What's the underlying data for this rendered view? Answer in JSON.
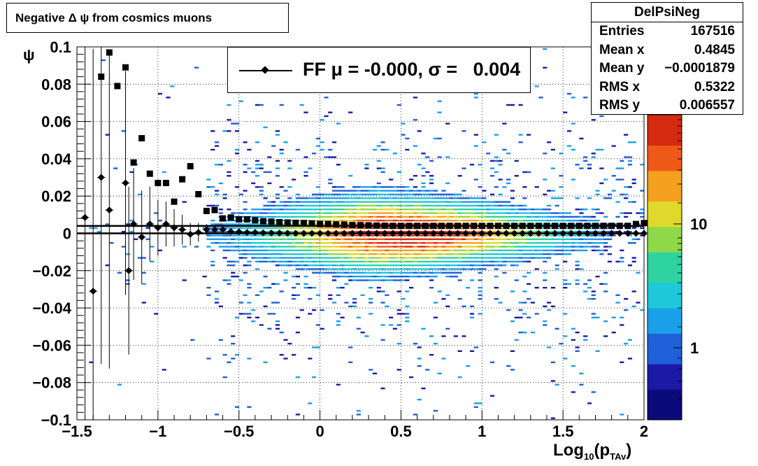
{
  "title": "Negative Δ ψ from cosmics muons",
  "stats": {
    "name": "DelPsiNeg",
    "rows": [
      {
        "label": "Entries",
        "value": "167516"
      },
      {
        "label": "Mean x",
        "value": "0.4845"
      },
      {
        "label": "Mean y",
        "value": "−0.0001879"
      },
      {
        "label": "RMS x",
        "value": "0.5322"
      },
      {
        "label": "RMS y",
        "value": "0.006557"
      }
    ]
  },
  "legend": {
    "label": "FF μ = -0.000, σ =   0.004"
  },
  "axes": {
    "xlabel_main": "Log",
    "xlabel_sub": "10",
    "xlabel_paren": "(p",
    "xlabel_sub2": "TAv",
    "xlabel_close": ")",
    "ylabel": "ψ"
  },
  "chart_data": {
    "type": "heatmap",
    "xlim": [
      -1.5,
      2
    ],
    "ylim": [
      -0.1,
      0.1
    ],
    "grid": true,
    "log_z": true,
    "z_ticks": [
      "1",
      "10"
    ],
    "x_ticks": [
      "−1.5",
      "−1",
      "−0.5",
      "0",
      "0.5",
      "1",
      "1.5",
      "2"
    ],
    "y_ticks": [
      "−0.1",
      "−0.08",
      "−0.06",
      "−0.04",
      "−0.02",
      "0",
      "0.02",
      "0.04",
      "0.06",
      "0.08",
      "0.1"
    ],
    "colors": [
      "#1a1aa6",
      "#1f5fd8",
      "#1aa0e8",
      "#1ec8d8",
      "#2fd3a0",
      "#8fd84a",
      "#e0d82a",
      "#f5a11f",
      "#ee5a17",
      "#d42a10"
    ],
    "series": [
      {
        "name": "FF",
        "marker": "diamond",
        "x": [
          -1.45,
          -1.4,
          -1.35,
          -1.3,
          -1.2,
          -1.18,
          -1.15,
          -1.1,
          -1.05,
          -1.0,
          -0.95,
          -0.9,
          -0.85,
          -0.8,
          -0.75,
          -0.7,
          -0.65,
          -0.6,
          -0.55,
          -0.5,
          -0.45,
          -0.4,
          -0.35,
          -0.3,
          -0.25,
          -0.2,
          -0.15,
          -0.1,
          -0.05,
          0,
          0.05,
          0.1,
          0.15,
          0.2,
          0.25,
          0.3,
          0.35,
          0.4,
          0.45,
          0.5,
          0.55,
          0.6,
          0.65,
          0.7,
          0.75,
          0.8,
          0.85,
          0.9,
          0.95,
          1.0,
          1.05,
          1.1,
          1.15,
          1.2,
          1.25,
          1.3,
          1.35,
          1.4,
          1.45,
          1.5,
          1.55,
          1.6,
          1.65,
          1.7,
          1.75,
          1.8,
          1.85,
          1.9,
          1.95,
          2.0
        ],
        "y": [
          0.0085,
          -0.031,
          0.03,
          0.0125,
          0.027,
          -0.02,
          0.005,
          -0.002,
          0.005,
          0.003,
          0.005,
          0.003,
          0.002,
          -0.0005,
          0.0005,
          0.002,
          0.002,
          0.002,
          0.001,
          0.0008,
          0.0005,
          0.0005,
          0.0003,
          0.0002,
          0.0002,
          0.0001,
          0,
          0,
          0,
          0,
          0,
          0,
          0,
          0,
          0,
          0,
          0,
          0,
          0,
          0,
          0,
          0,
          0,
          0,
          0,
          0,
          0,
          0,
          0,
          0,
          0,
          0,
          0,
          0,
          0,
          0,
          0,
          0,
          0,
          0,
          0,
          0,
          0,
          0,
          0,
          0,
          0,
          0,
          0,
          0
        ],
        "yerr": [
          0.12,
          0.13,
          0.1,
          0.085,
          0.06,
          0.045,
          0.03,
          0.025,
          0.02,
          0.015,
          0.012,
          0.01,
          0.008,
          0.006,
          0.005,
          0.003,
          0.002,
          0.001,
          0.001,
          0.0005,
          0.0005,
          0.0005,
          0,
          0,
          0,
          0,
          0,
          0,
          0,
          0,
          0,
          0,
          0,
          0,
          0,
          0,
          0,
          0,
          0,
          0,
          0,
          0,
          0,
          0,
          0,
          0,
          0,
          0,
          0,
          0,
          0,
          0,
          0,
          0,
          0,
          0,
          0,
          0,
          0,
          0,
          0,
          0,
          0,
          0,
          0,
          0,
          0,
          0,
          0,
          0
        ]
      },
      {
        "name": "",
        "marker": "square",
        "x": [
          -1.35,
          -1.3,
          -1.25,
          -1.2,
          -1.15,
          -1.1,
          -1.05,
          -1.0,
          -0.95,
          -0.9,
          -0.85,
          -0.8,
          -0.75,
          -0.7,
          -0.65,
          -0.6,
          -0.55,
          -0.5,
          -0.45,
          -0.4,
          -0.35,
          -0.3,
          -0.25,
          -0.2,
          -0.15,
          -0.1,
          -0.05,
          0,
          0.05,
          0.1,
          0.15,
          0.2,
          0.25,
          0.3,
          0.35,
          0.4,
          0.45,
          0.5,
          0.55,
          0.6,
          0.65,
          0.7,
          0.75,
          0.8,
          0.85,
          0.9,
          0.95,
          1.0,
          1.05,
          1.1,
          1.15,
          1.2,
          1.25,
          1.3,
          1.35,
          1.4,
          1.45,
          1.5,
          1.55,
          1.6,
          1.65,
          1.7,
          1.75,
          1.8,
          1.85,
          1.9,
          1.95,
          2.0
        ],
        "y": [
          0.084,
          0.097,
          0.079,
          0.089,
          0.038,
          0.051,
          0.032,
          0.027,
          0.027,
          0.017,
          0.029,
          0.036,
          0.021,
          0.012,
          0.0125,
          0.008,
          0.0085,
          0.0075,
          0.0075,
          0.007,
          0.0065,
          0.0063,
          0.006,
          0.0058,
          0.0056,
          0.0055,
          0.0053,
          0.005,
          0.005,
          0.0048,
          0.0047,
          0.0045,
          0.0044,
          0.0043,
          0.0042,
          0.0041,
          0.004,
          0.004,
          0.004,
          0.004,
          0.004,
          0.004,
          0.004,
          0.004,
          0.004,
          0.004,
          0.004,
          0.004,
          0.004,
          0.004,
          0.004,
          0.004,
          0.004,
          0.004,
          0.004,
          0.004,
          0.004,
          0.004,
          0.004,
          0.004,
          0.004,
          0.004,
          0.004,
          0.004,
          0.004,
          0.004,
          0.005,
          0.0055
        ]
      }
    ],
    "fit_lines": [
      {
        "y": 0.0
      },
      {
        "y": 0.004
      }
    ]
  }
}
